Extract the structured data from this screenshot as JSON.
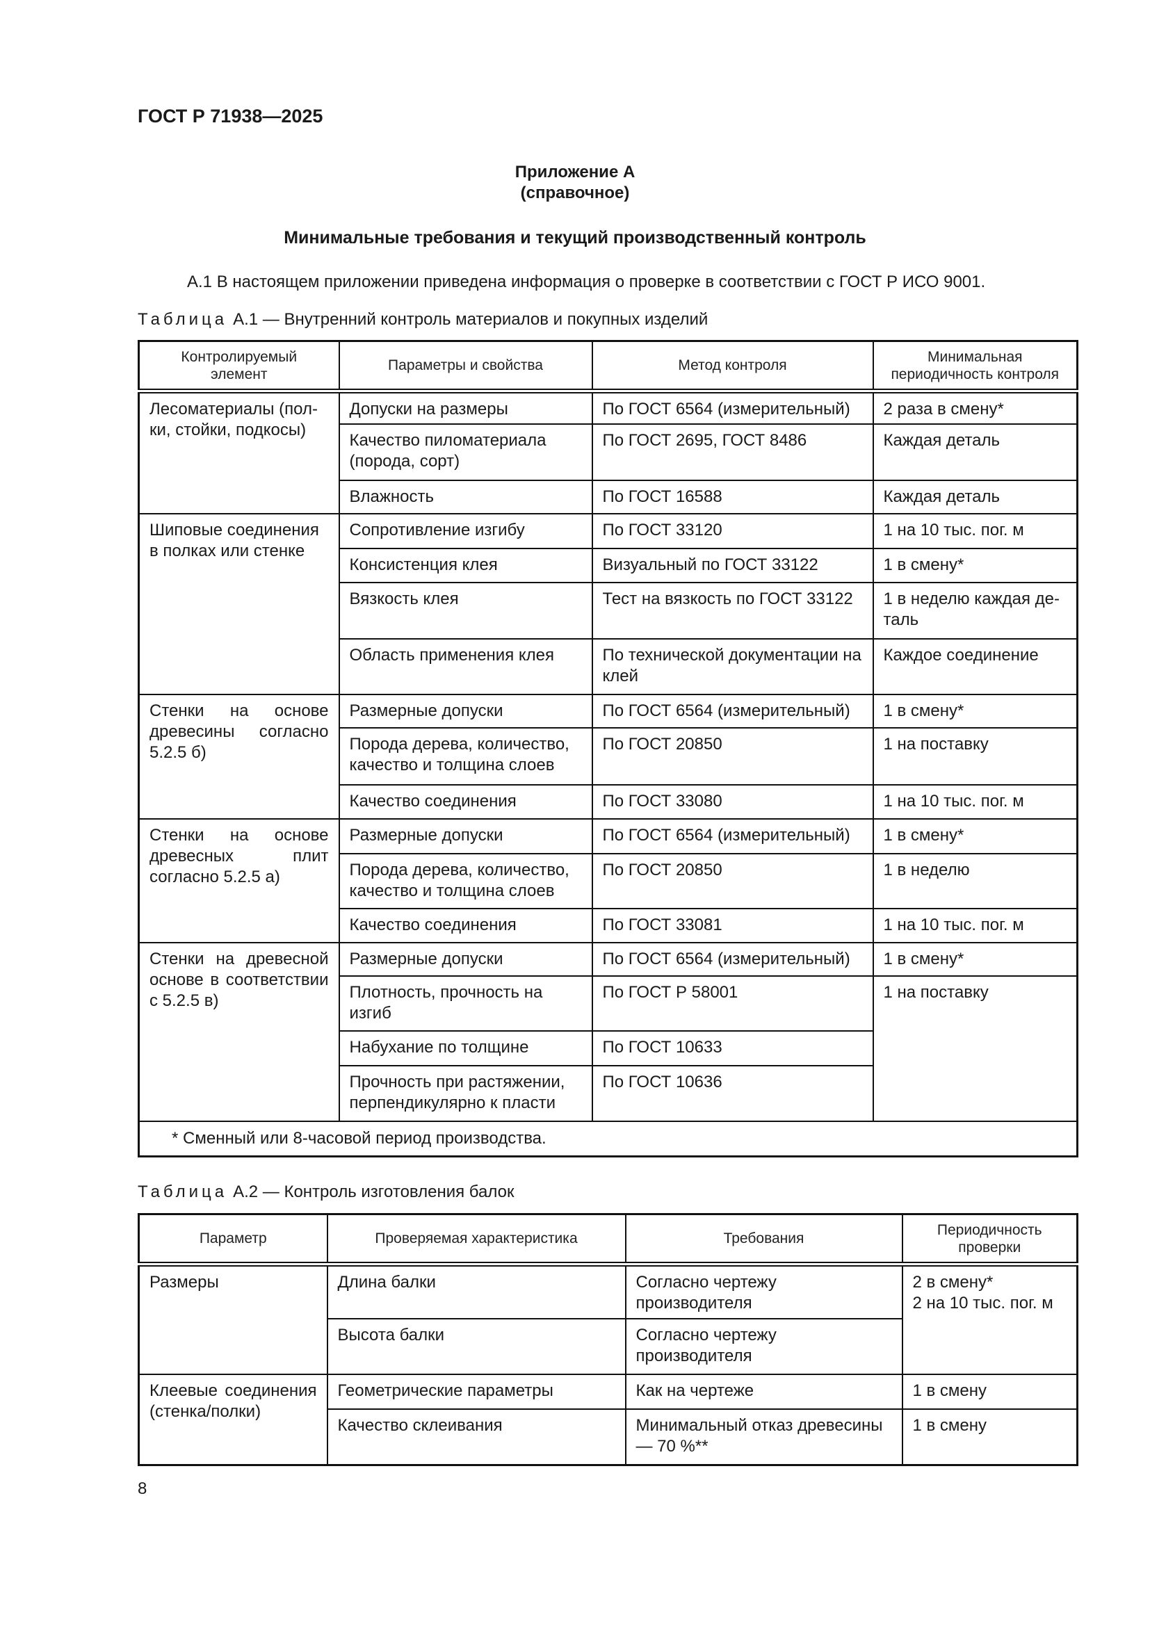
{
  "header": {
    "doc_id": "ГОСТ Р 71938—2025"
  },
  "annex": {
    "title": "Приложение А",
    "kind": "(справочное)",
    "section_title": "Минимальные требования и текущий производственный контроль",
    "intro": "А.1 В настоящем приложении приведена информация о проверке в соответствии с ГОСТ Р ИСО 9001."
  },
  "table_a1": {
    "caption_label": "Таблица",
    "caption_text": "А.1 — Внутренний контроль материалов и покупных изделий",
    "headers": [
      "Контролируемый\nэлемент",
      "Параметры и свойства",
      "Метод контроля",
      "Минимальная\nпериодичность контроля"
    ],
    "groups": [
      {
        "element": "Лесоматериалы (пол-\nки, стойки, подкосы)",
        "rows": [
          {
            "parameter": "Допуски на размеры",
            "method": "По ГОСТ 6564 (измерительный)",
            "period": "2 раза в смену*"
          },
          {
            "parameter": "Качество пиломатериала (порода, сорт)",
            "method": "По ГОСТ 2695, ГОСТ 8486",
            "period": "Каждая деталь"
          },
          {
            "parameter": "Влажность",
            "method": "По ГОСТ 16588",
            "period": "Каждая деталь"
          }
        ]
      },
      {
        "element": "Шиповые соединения\nв полках или стенке",
        "rows": [
          {
            "parameter": "Сопротивление изгибу",
            "method": "По ГОСТ 33120",
            "period": "1 на 10 тыс. пог. м"
          },
          {
            "parameter": "Консистенция клея",
            "method": "Визуальный по ГОСТ 33122",
            "period": "1 в смену*"
          },
          {
            "parameter": "Вязкость клея",
            "method": "Тест на вязкость по ГОСТ 33122",
            "period": "1 в неделю каждая де-\nталь"
          },
          {
            "parameter": "Область применения клея",
            "method": "По технической документации на клей",
            "period": "Каждое соединение"
          }
        ]
      },
      {
        "element": "Стенки на основе древесины согласно 5.2.5 б)",
        "rows": [
          {
            "parameter": "Размерные допуски",
            "method": "По ГОСТ 6564 (измерительный)",
            "period": "1 в смену*"
          },
          {
            "parameter": "Порода дерева, количество, качество и толщина слоев",
            "method": "По ГОСТ 20850",
            "period": "1 на поставку"
          },
          {
            "parameter": "Качество соединения",
            "method": "По ГОСТ 33080",
            "period": "1 на 10 тыс. пог. м"
          }
        ]
      },
      {
        "element": "Стенки на основе древесных плит согласно 5.2.5 а)",
        "rows": [
          {
            "parameter": "Размерные допуски",
            "method": "По ГОСТ 6564 (измерительный)",
            "period": "1 в смену*"
          },
          {
            "parameter": "Порода дерева, количество, качество и толщина слоев",
            "method": "По ГОСТ 20850",
            "period": "1 в неделю"
          },
          {
            "parameter": "Качество соединения",
            "method": "По ГОСТ 33081",
            "period": "1 на 10 тыс. пог. м"
          }
        ]
      },
      {
        "element": "Стенки на древесной основе в соответствии с 5.2.5 в)",
        "rows": [
          {
            "parameter": "Размерные допуски",
            "method": "По ГОСТ 6564 (измерительный)",
            "period": "1 в смену*"
          },
          {
            "parameter": "Плотность, прочность на изгиб",
            "method": "По ГОСТ Р 58001",
            "period": "1 на поставку"
          },
          {
            "parameter": "Набухание по толщине",
            "method": "По ГОСТ 10633",
            "period": null
          },
          {
            "parameter": "Прочность при растяжении, перпендикулярно к пласти",
            "method": "По ГОСТ 10636",
            "period": null
          }
        ]
      }
    ],
    "footnote": "* Сменный или 8-часовой период производства."
  },
  "table_a2": {
    "caption_label": "Таблица",
    "caption_text": "А.2 — Контроль изготовления балок",
    "headers": [
      "Параметр",
      "Проверяемая характеристика",
      "Требования",
      "Периодичность\nпроверки"
    ],
    "groups": [
      {
        "element": "Размеры",
        "rows": [
          {
            "parameter": "Длина балки",
            "method": "Согласно чертежу производителя",
            "period": "2 в смену*\n2 на 10 тыс. пог. м"
          },
          {
            "parameter": "Высота балки",
            "method": "Согласно чертежу производителя",
            "period": null
          }
        ]
      },
      {
        "element": "Клеевые соединения (стенка/полки)",
        "rows": [
          {
            "parameter": "Геометрические параметры",
            "method": "Как на чертеже",
            "period": "1 в смену"
          },
          {
            "parameter": "Качество склеивания",
            "method": "Минимальный отказ древесины — 70 %**",
            "period": "1 в смену"
          }
        ]
      }
    ]
  },
  "page_number": "8"
}
